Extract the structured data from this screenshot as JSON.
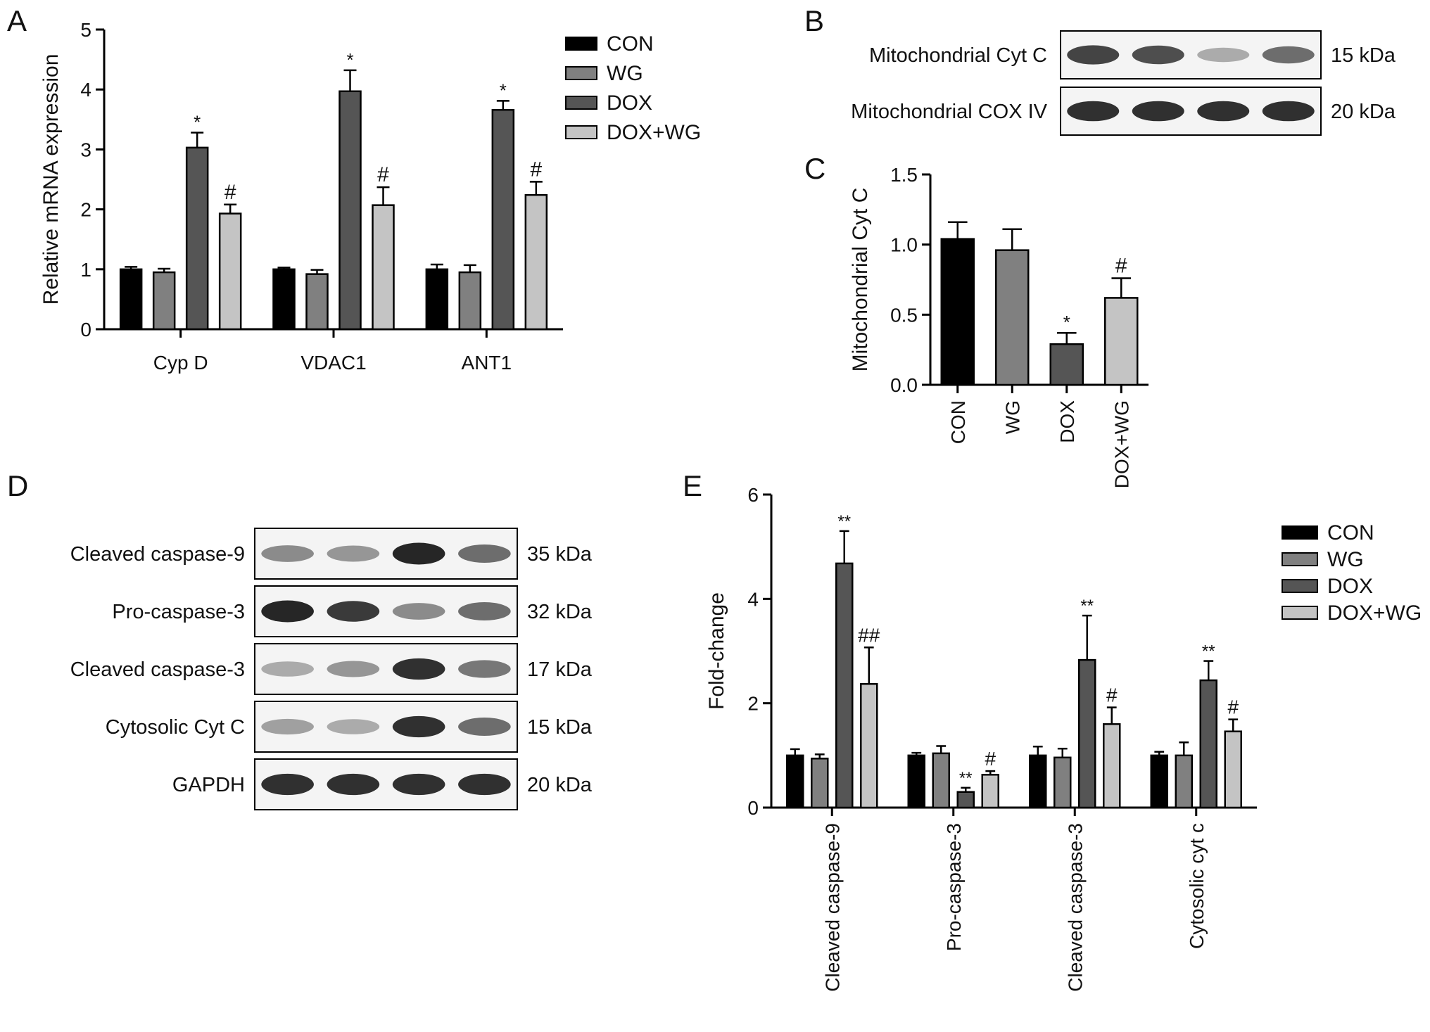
{
  "panel_labels": {
    "A": "A",
    "B": "B",
    "C": "C",
    "D": "D",
    "E": "E"
  },
  "colors": {
    "CON": "#000000",
    "WG": "#808080",
    "DOX": "#555555",
    "DOX+WG": "#c4c4c4",
    "axis": "#000000"
  },
  "blots": {
    "B": {
      "rows": [
        {
          "label": "Mitochondrial Cyt C",
          "kda": "15 kDa",
          "intensity": [
            0.8,
            0.75,
            0.3,
            0.6
          ]
        },
        {
          "label": "Mitochondrial COX IV",
          "kda": "20 kDa",
          "intensity": [
            0.9,
            0.9,
            0.9,
            0.9
          ]
        }
      ]
    },
    "D": {
      "rows": [
        {
          "label": "Cleaved caspase-9",
          "kda": "35 kDa",
          "intensity": [
            0.45,
            0.4,
            0.95,
            0.6
          ]
        },
        {
          "label": "Pro-caspase-3",
          "kda": "32 kDa",
          "intensity": [
            0.95,
            0.85,
            0.45,
            0.6
          ]
        },
        {
          "label": "Cleaved caspase-3",
          "kda": "17 kDa",
          "intensity": [
            0.3,
            0.4,
            0.9,
            0.55
          ]
        },
        {
          "label": "Cytosolic Cyt C",
          "kda": "15 kDa",
          "intensity": [
            0.35,
            0.3,
            0.9,
            0.6
          ]
        },
        {
          "label": "GAPDH",
          "kda": "20 kDa",
          "intensity": [
            0.9,
            0.9,
            0.9,
            0.9
          ]
        }
      ]
    }
  },
  "chart_data": [
    {
      "panel": "A",
      "type": "bar",
      "ylabel": "Relative mRNA expression",
      "xlabel": "",
      "ylim": [
        0,
        5
      ],
      "yticks": [
        "0",
        "1",
        "2",
        "3",
        "4",
        "5"
      ],
      "categories": [
        "Cyp D",
        "VDAC1",
        "ANT1"
      ],
      "series": [
        {
          "name": "CON",
          "values": [
            1.0,
            1.0,
            1.0
          ],
          "errors": [
            0.04,
            0.03,
            0.08
          ],
          "annotations": [
            "",
            "",
            ""
          ]
        },
        {
          "name": "WG",
          "values": [
            0.95,
            0.92,
            0.95
          ],
          "errors": [
            0.06,
            0.07,
            0.12
          ],
          "annotations": [
            "",
            "",
            ""
          ]
        },
        {
          "name": "DOX",
          "values": [
            3.03,
            3.97,
            3.66
          ],
          "errors": [
            0.25,
            0.35,
            0.15
          ],
          "annotations": [
            "*",
            "*",
            "*"
          ]
        },
        {
          "name": "DOX+WG",
          "values": [
            1.93,
            2.07,
            2.24
          ],
          "errors": [
            0.15,
            0.3,
            0.22
          ],
          "annotations": [
            "#",
            "#",
            "#"
          ]
        }
      ],
      "legend": {
        "position": "right",
        "entries": [
          "CON",
          "WG",
          "DOX",
          "DOX+WG"
        ]
      },
      "grid": false
    },
    {
      "panel": "C",
      "type": "bar",
      "ylabel": "Mitochondrial Cyt C",
      "xlabel": "",
      "ylim": [
        0,
        1.5
      ],
      "yticks": [
        "0.0",
        "0.5",
        "1.0",
        "1.5"
      ],
      "categories": [
        "CON",
        "WG",
        "DOX",
        "DOX+WG"
      ],
      "values": [
        1.04,
        0.96,
        0.29,
        0.62
      ],
      "errors": [
        0.12,
        0.15,
        0.08,
        0.14
      ],
      "annotations": [
        "",
        "",
        "*",
        "#"
      ],
      "grid": false
    },
    {
      "panel": "E",
      "type": "bar",
      "ylabel": "Fold-change",
      "xlabel": "",
      "ylim": [
        0,
        6
      ],
      "yticks": [
        "0",
        "2",
        "4",
        "6"
      ],
      "categories": [
        "Cleaved caspase-9",
        "Pro-caspase-3",
        "Cleaved caspase-3",
        "Cytosolic cyt c"
      ],
      "series": [
        {
          "name": "CON",
          "values": [
            1.0,
            1.0,
            1.0,
            1.0
          ],
          "errors": [
            0.12,
            0.05,
            0.17,
            0.07
          ],
          "annotations": [
            "",
            "",
            "",
            ""
          ]
        },
        {
          "name": "WG",
          "values": [
            0.94,
            1.04,
            0.96,
            1.0
          ],
          "errors": [
            0.08,
            0.14,
            0.17,
            0.25
          ],
          "annotations": [
            "",
            "",
            "",
            ""
          ]
        },
        {
          "name": "DOX",
          "values": [
            4.68,
            0.3,
            2.83,
            2.44
          ],
          "errors": [
            0.62,
            0.08,
            0.85,
            0.37
          ],
          "annotations": [
            "**",
            "**",
            "**",
            "**"
          ]
        },
        {
          "name": "DOX+WG",
          "values": [
            2.37,
            0.63,
            1.6,
            1.46
          ],
          "errors": [
            0.7,
            0.07,
            0.32,
            0.23
          ],
          "annotations": [
            "##",
            "#",
            "#",
            "#"
          ]
        }
      ],
      "legend": {
        "position": "right",
        "entries": [
          "CON",
          "WG",
          "DOX",
          "DOX+WG"
        ]
      },
      "grid": false
    }
  ]
}
